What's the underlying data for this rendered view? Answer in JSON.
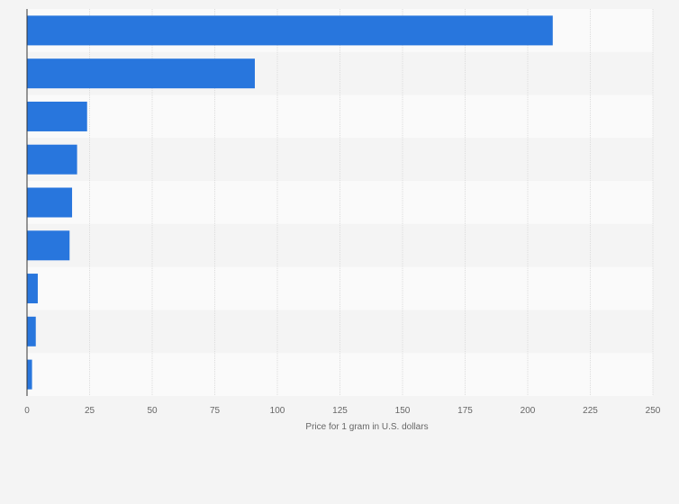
{
  "chart_data": {
    "type": "bar",
    "orientation": "horizontal",
    "categories": [
      "",
      "",
      "",
      "",
      "",
      "",
      "",
      "",
      ""
    ],
    "values": [
      210,
      91,
      24,
      20,
      18,
      17,
      4.3,
      3.5,
      2
    ],
    "title": "",
    "xlabel": "Price for 1 gram in U.S. dollars",
    "ylabel": "",
    "xlim": [
      0,
      250
    ],
    "xticks": [
      0,
      25,
      50,
      75,
      100,
      125,
      150,
      175,
      200,
      225,
      250
    ],
    "grid": "vertical",
    "bar_color": "#2876dd",
    "band_colors": [
      "#f4f4f4",
      "#fafafa"
    ]
  }
}
